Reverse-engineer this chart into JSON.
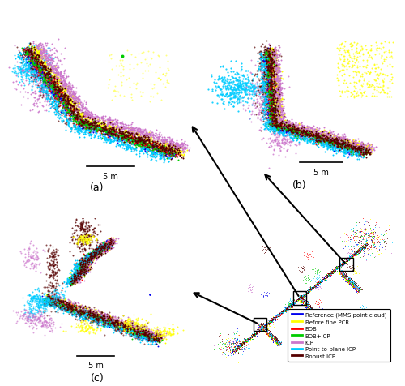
{
  "figure_width": 5.0,
  "figure_height": 4.77,
  "dpi": 100,
  "colors": {
    "reference": "#0000EE",
    "before_pcr": "#FFFF00",
    "bob": "#FF0000",
    "bob_icp": "#00CC00",
    "icp": "#CC77CC",
    "pt_plane_icp": "#00CCFF",
    "robust_icp": "#550000"
  },
  "legend_labels": [
    [
      "reference",
      "Reference (MMS point cloud)"
    ],
    [
      "before_pcr",
      "Before fine PCR"
    ],
    [
      "bob",
      "BOB"
    ],
    [
      "bob_icp",
      "BOB+ICP"
    ],
    [
      "icp",
      "ICP"
    ],
    [
      "pt_plane_icp",
      "Point-to-plane ICP"
    ],
    [
      "robust_icp",
      "Robust ICP"
    ]
  ],
  "scale_bar_label": "5 m",
  "panel_labels": [
    "(a)",
    "(b)",
    "(c)"
  ]
}
